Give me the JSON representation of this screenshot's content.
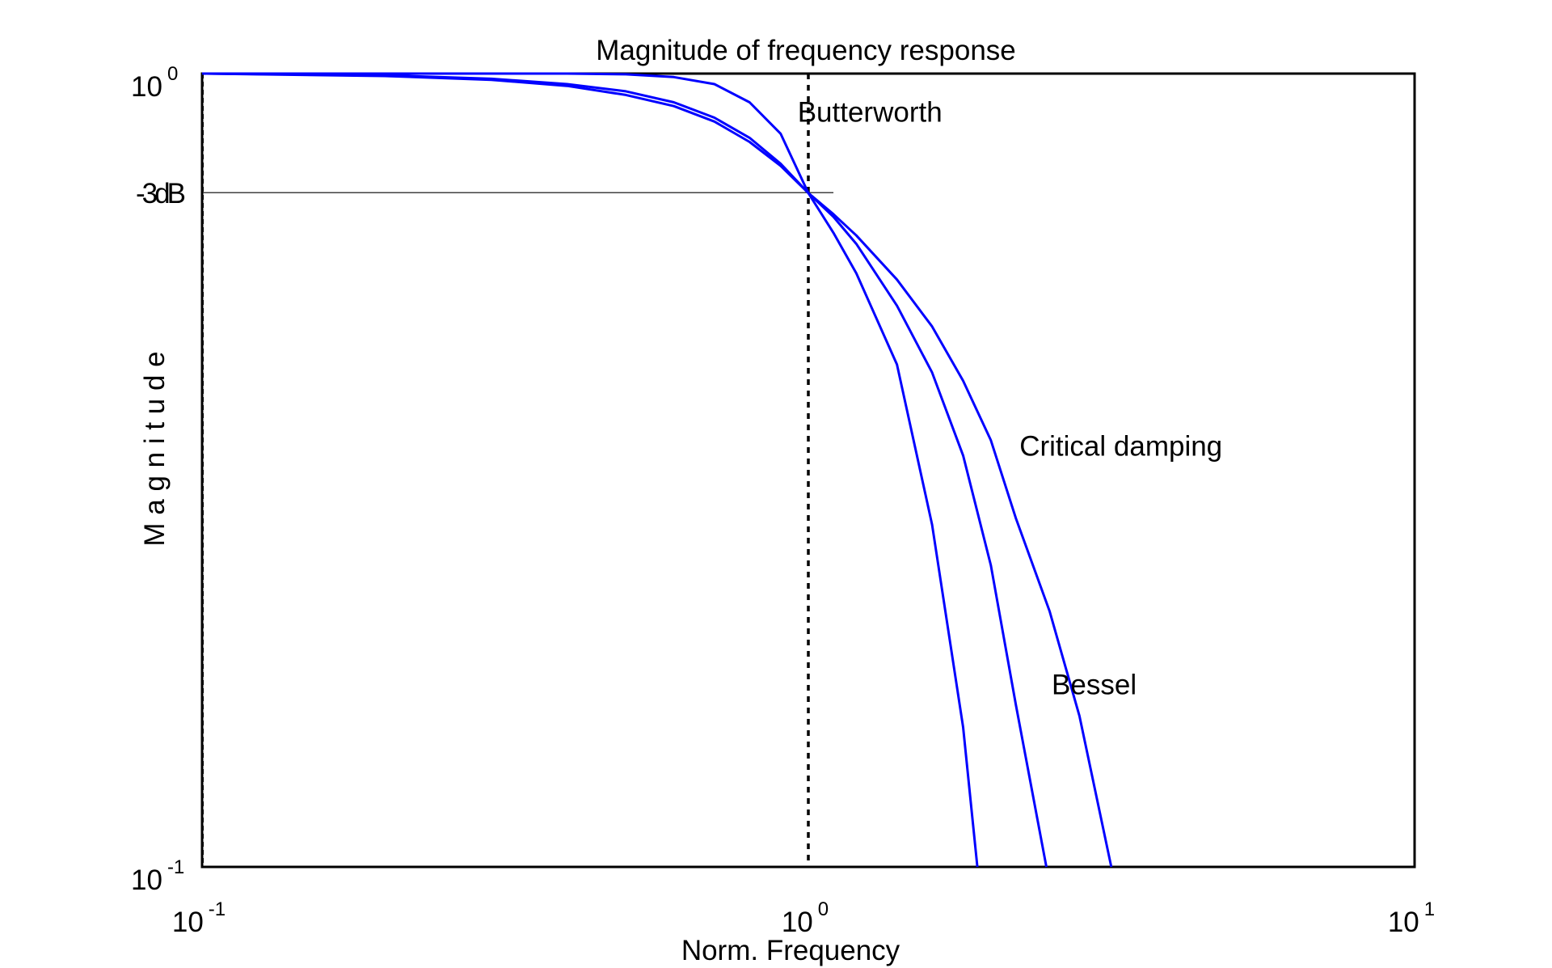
{
  "chart_data": {
    "type": "line",
    "title": "Magnitude of frequency response",
    "xlabel": "Norm. Frequency",
    "ylabel": "M a g n i t u d e",
    "x_scale": "log",
    "y_scale": "log",
    "xlim": [
      0.1,
      10
    ],
    "ylim": [
      0.1,
      1
    ],
    "x_ticks": [
      {
        "value": 0.1,
        "base": "10",
        "exp": "-1"
      },
      {
        "value": 1,
        "base": "10",
        "exp": "0"
      },
      {
        "value": 10,
        "base": "10",
        "exp": "1"
      }
    ],
    "y_ticks": [
      {
        "value": 1,
        "base": "10",
        "exp": "0"
      },
      {
        "value": 0.1,
        "base": "10",
        "exp": "-1"
      }
    ],
    "reference_line": {
      "label": "-3dB",
      "y": 0.7079,
      "x_end": 1.1
    },
    "cutoff_line": {
      "x": 1
    },
    "series": [
      {
        "name": "Butterworth",
        "x": [
          0.1,
          0.2,
          0.3,
          0.4,
          0.5,
          0.6,
          0.7,
          0.8,
          0.9,
          1.0,
          1.1,
          1.2,
          1.4,
          1.6,
          1.8,
          1.9
        ],
        "y": [
          1.0,
          1.0,
          1.0,
          1.0,
          0.998,
          0.99,
          0.97,
          0.92,
          0.84,
          0.707,
          0.63,
          0.56,
          0.43,
          0.27,
          0.15,
          0.1
        ]
      },
      {
        "name": "Bessel",
        "x": [
          0.1,
          0.2,
          0.3,
          0.4,
          0.5,
          0.6,
          0.7,
          0.8,
          0.9,
          1.0,
          1.1,
          1.2,
          1.4,
          1.6,
          1.8,
          2.0,
          2.2,
          2.47
        ],
        "y": [
          1.0,
          0.995,
          0.985,
          0.97,
          0.95,
          0.92,
          0.88,
          0.83,
          0.77,
          0.707,
          0.66,
          0.61,
          0.51,
          0.42,
          0.33,
          0.24,
          0.16,
          0.1
        ]
      },
      {
        "name": "Critical damping",
        "x": [
          0.1,
          0.2,
          0.3,
          0.4,
          0.5,
          0.6,
          0.7,
          0.8,
          0.9,
          1.0,
          1.1,
          1.2,
          1.4,
          1.6,
          1.8,
          2.0,
          2.2,
          2.5,
          2.8,
          3.16
        ],
        "y": [
          1.0,
          0.993,
          0.982,
          0.965,
          0.94,
          0.91,
          0.87,
          0.82,
          0.765,
          0.707,
          0.665,
          0.625,
          0.55,
          0.48,
          0.41,
          0.345,
          0.275,
          0.21,
          0.155,
          0.1
        ]
      }
    ],
    "labels": [
      {
        "text": "Butterworth",
        "x": 0.96,
        "y": 0.87
      },
      {
        "text": "Critical damping",
        "x": 2.23,
        "y": 0.33
      },
      {
        "text": "Bessel",
        "x": 2.52,
        "y": 0.165
      }
    ],
    "line_color": "#0000ff",
    "grid": false,
    "legend": "none"
  }
}
